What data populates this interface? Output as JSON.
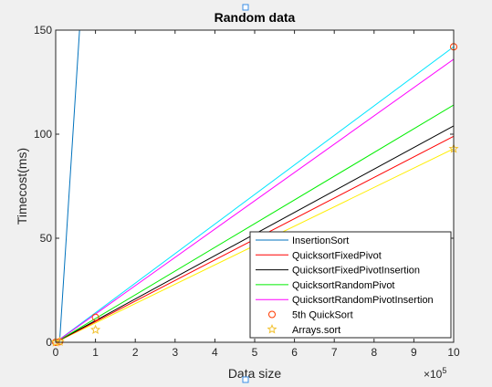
{
  "chart_data": {
    "type": "line",
    "title": "Random data",
    "xlabel": "Data size",
    "ylabel": "Timecost(ms)",
    "x_exponent_label": "×10",
    "x_exponent_power": "5",
    "xlim": [
      0,
      1000000
    ],
    "ylim": [
      0,
      150
    ],
    "x_ticks": [
      0,
      100000,
      200000,
      300000,
      400000,
      500000,
      600000,
      700000,
      800000,
      900000,
      1000000
    ],
    "x_tick_labels": [
      "0",
      "1",
      "2",
      "3",
      "4",
      "5",
      "6",
      "7",
      "8",
      "9",
      "10"
    ],
    "y_ticks": [
      0,
      50,
      100,
      150
    ],
    "y_tick_labels": [
      "0",
      "50",
      "100",
      "150"
    ],
    "grid": false,
    "legend_position": "bottom-right",
    "series": [
      {
        "name": "InsertionSort",
        "color": "#0072bd",
        "style": "line",
        "x": [
          0,
          10000,
          60000
        ],
        "y": [
          0,
          0.5,
          150
        ]
      },
      {
        "name": "QuicksortFixedPivot",
        "color": "#ff0000",
        "style": "line",
        "x": [
          0,
          1000000
        ],
        "y": [
          0,
          99
        ]
      },
      {
        "name": "QuicksortFixedPivotInsertion",
        "color": "#000000",
        "style": "line",
        "x": [
          0,
          1000000
        ],
        "y": [
          0,
          104
        ]
      },
      {
        "name": "QuicksortRandomPivot",
        "color": "#00ee00",
        "style": "line",
        "x": [
          0,
          1000000
        ],
        "y": [
          0,
          114
        ]
      },
      {
        "name": "QuicksortRandomPivotInsertion",
        "color": "#ff00ff",
        "style": "line",
        "x": [
          0,
          1000000
        ],
        "y": [
          0,
          136
        ]
      },
      {
        "name": "5th QuickSort",
        "color": "#ff3b00",
        "style": "circle",
        "x": [
          0,
          10000,
          100000,
          1000000
        ],
        "y": [
          0,
          0.3,
          12,
          142
        ]
      },
      {
        "name": "Arrays.sort",
        "color": "#f2c12e",
        "style": "star",
        "x": [
          0,
          10000,
          100000,
          1000000
        ],
        "y": [
          0,
          0.3,
          6,
          93
        ]
      }
    ],
    "extra_lines": [
      {
        "color": "#00e5ff",
        "x": [
          0,
          1000000
        ],
        "y": [
          0,
          142
        ]
      },
      {
        "color": "#ffee00",
        "x": [
          0,
          1000000
        ],
        "y": [
          0,
          93
        ]
      }
    ]
  }
}
